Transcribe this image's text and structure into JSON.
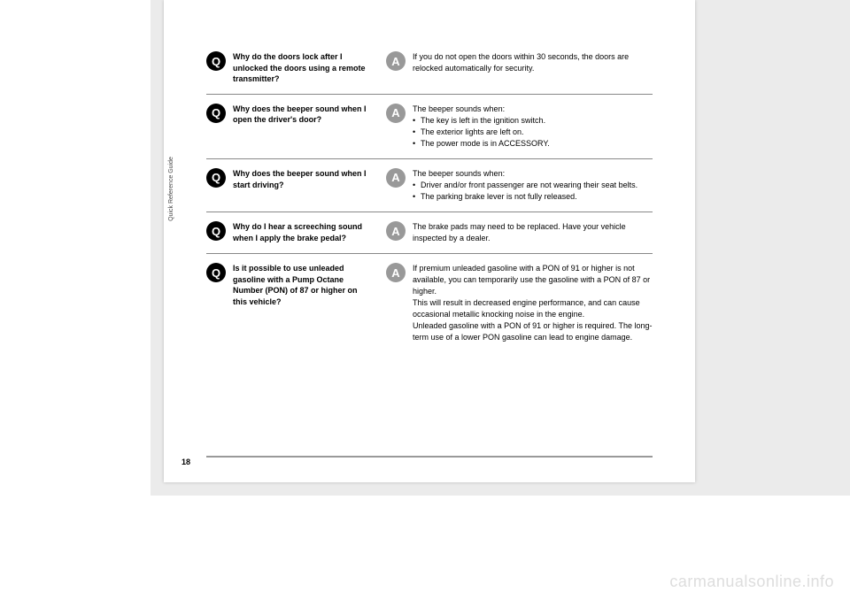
{
  "sidebar_label": "Quick Reference Guide",
  "page_number": "18",
  "watermark": "carmanualsonline.info",
  "qa": [
    {
      "q": "Why do the doors lock after I unlocked the doors using a remote transmitter?",
      "a_intro": "If you do not open the doors within 30 seconds, the doors are relocked automatically for security.",
      "a_bullets": [],
      "a_outro": ""
    },
    {
      "q": "Why does the beeper sound when I open the driver's door?",
      "a_intro": "The beeper sounds when:",
      "a_bullets": [
        "The key is left in the ignition switch.",
        "The exterior lights are left on.",
        "The power mode is in ACCESSORY."
      ],
      "a_outro": ""
    },
    {
      "q": "Why does the beeper sound when I start driving?",
      "a_intro": "The beeper sounds when:",
      "a_bullets": [
        "Driver and/or front passenger are not wearing their seat belts.",
        "The parking brake lever is not fully released."
      ],
      "a_outro": ""
    },
    {
      "q": "Why do I hear a screeching sound when I apply the brake pedal?",
      "a_intro": "The brake pads may need to be replaced. Have your vehicle inspected by a dealer.",
      "a_bullets": [],
      "a_outro": ""
    },
    {
      "q": "Is it possible to use unleaded gasoline with a Pump Octane Number (PON) of 87 or higher on this vehicle?",
      "a_intro": "If premium unleaded gasoline with a PON of 91 or higher is not available, you can temporarily use the gasoline with a PON of 87 or higher.",
      "a_bullets": [],
      "a_outro": "This will result in decreased engine performance, and can cause occasional metallic knocking noise in the engine.\nUnleaded gasoline with a PON of 91 or higher is required. The long-term use of a lower PON gasoline can lead to engine damage."
    }
  ],
  "badge_q": "Q",
  "badge_a": "A"
}
